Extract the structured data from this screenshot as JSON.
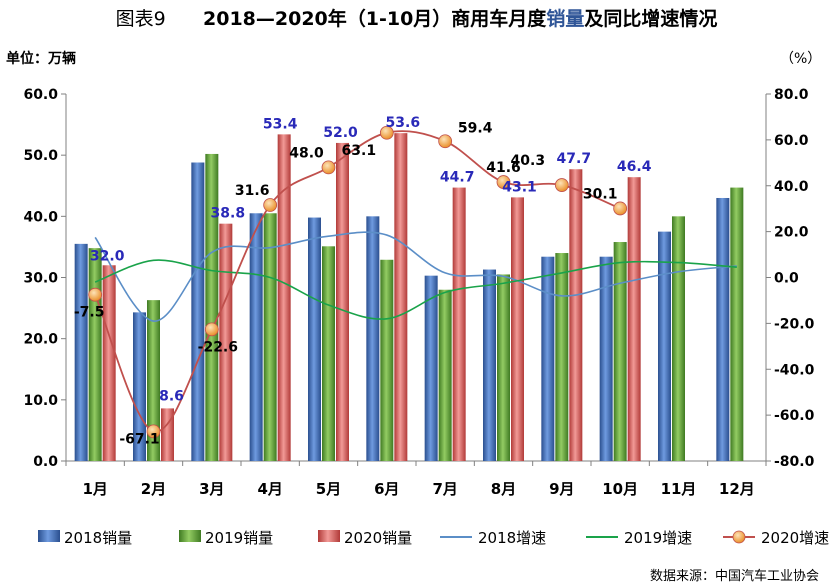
{
  "header": {
    "prefix": "图表9",
    "title_main": "2018—2020年（1-10月）商用车月度",
    "title_highlight": "销量",
    "title_tail": "及同比增速情况",
    "unit_left": "单位：万辆",
    "unit_right": "（%）"
  },
  "source": "数据来源：中国汽车工业协会",
  "colors": {
    "bar2018": "#4472c4",
    "bar2019": "#70ad47",
    "bar2020": "#e06666",
    "line2018": "#5b8ec7",
    "line2019": "#1aa34a",
    "line2020": "#c0504d",
    "marker2020": "#f4a340",
    "label_blue": "#2929b8"
  },
  "chart_data": {
    "type": "bar",
    "categories": [
      "1月",
      "2月",
      "3月",
      "4月",
      "5月",
      "6月",
      "7月",
      "8月",
      "9月",
      "10月",
      "11月",
      "12月"
    ],
    "series": [
      {
        "name": "2018销量",
        "kind": "bar",
        "axis": "left",
        "values": [
          35.5,
          24.3,
          48.8,
          40.5,
          39.8,
          40.0,
          30.3,
          31.3,
          33.4,
          33.4,
          37.5,
          43.0
        ]
      },
      {
        "name": "2019销量",
        "kind": "bar",
        "axis": "left",
        "values": [
          34.8,
          26.3,
          50.2,
          40.5,
          35.1,
          32.9,
          28.0,
          30.5,
          34.0,
          35.8,
          40.0,
          44.7
        ]
      },
      {
        "name": "2020销量",
        "kind": "bar",
        "axis": "left",
        "values": [
          32.0,
          8.6,
          38.8,
          53.4,
          52.0,
          53.6,
          44.7,
          43.1,
          47.7,
          46.4,
          null,
          null
        ]
      },
      {
        "name": "2018增速",
        "kind": "line",
        "axis": "right",
        "values": [
          17.5,
          -19.0,
          11.0,
          13.0,
          18.0,
          18.5,
          2.0,
          0.5,
          -8.0,
          -2.5,
          2.5,
          5.0
        ]
      },
      {
        "name": "2019增速",
        "kind": "line",
        "axis": "right",
        "values": [
          -2.0,
          7.5,
          3.0,
          0.0,
          -12.0,
          -18.0,
          -6.5,
          -2.5,
          2.0,
          6.5,
          6.5,
          4.5
        ]
      },
      {
        "name": "2020增速",
        "kind": "line",
        "axis": "right",
        "values": [
          -7.5,
          -67.1,
          -22.6,
          31.6,
          48.0,
          63.1,
          59.4,
          41.6,
          40.3,
          30.1,
          null,
          null
        ]
      }
    ],
    "bar_labels_2020": [
      "32.0",
      "8.6",
      "38.8",
      "53.4",
      "52.0",
      "53.6",
      "44.7",
      "43.1",
      "47.7",
      "46.4"
    ],
    "growth_labels_2020": [
      "-7.5",
      "-67.1",
      "-22.6",
      "31.6",
      "48.0",
      "63.1",
      "59.4",
      "41.6",
      "40.3",
      "30.1"
    ],
    "y_left": {
      "min": 0,
      "max": 60,
      "ticks": [
        "0.0",
        "10.0",
        "20.0",
        "30.0",
        "40.0",
        "50.0",
        "60.0"
      ]
    },
    "y_right": {
      "min": -80,
      "max": 80,
      "ticks": [
        "-80.0",
        "-60.0",
        "-40.0",
        "-20.0",
        "0.0",
        "20.0",
        "40.0",
        "60.0",
        "80.0"
      ]
    },
    "legend": [
      "2018销量",
      "2019销量",
      "2020销量",
      "2018增速",
      "2019增速",
      "2020增速"
    ],
    "legend_position": "bottom",
    "grid": false
  }
}
